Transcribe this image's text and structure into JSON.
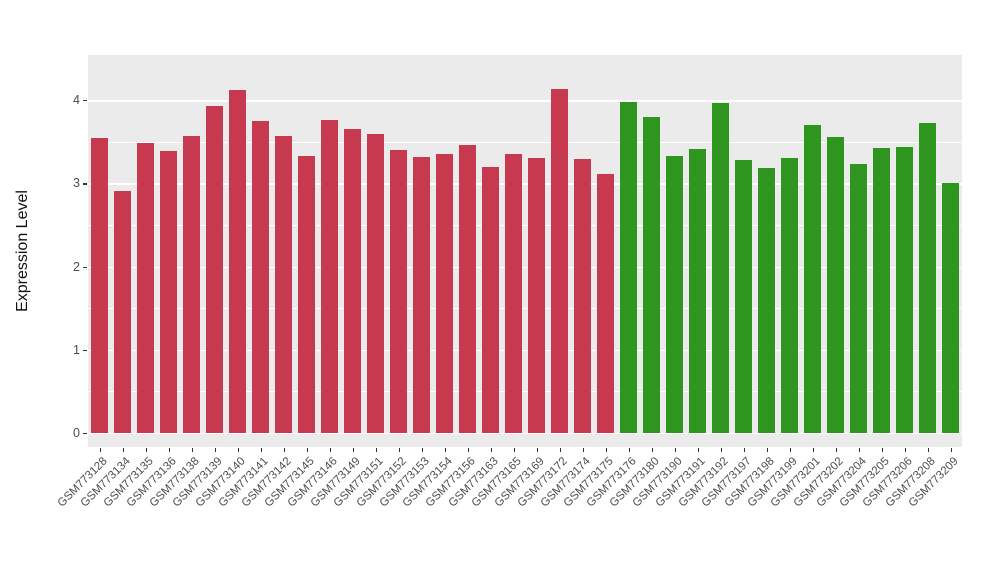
{
  "chart_data": {
    "type": "bar",
    "title": "",
    "xlabel": "",
    "ylabel": "Expression Level",
    "ylim": [
      0,
      4.35
    ],
    "yticks": [
      0,
      1,
      2,
      3,
      4
    ],
    "grid": true,
    "legend_position": "none",
    "panel_bg": "#EBEBEB",
    "grid_color": "#FFFFFF",
    "axis_text_color": "#4D4D4D",
    "categories": [
      "GSM773128",
      "GSM773134",
      "GSM773135",
      "GSM773136",
      "GSM773138",
      "GSM773139",
      "GSM773140",
      "GSM773141",
      "GSM773142",
      "GSM773145",
      "GSM773146",
      "GSM773149",
      "GSM773151",
      "GSM773152",
      "GSM773153",
      "GSM773154",
      "GSM773156",
      "GSM773163",
      "GSM773165",
      "GSM773169",
      "GSM773172",
      "GSM773174",
      "GSM773175",
      "GSM773176",
      "GSM773180",
      "GSM773190",
      "GSM773191",
      "GSM773192",
      "GSM773197",
      "GSM773198",
      "GSM773199",
      "GSM773201",
      "GSM773202",
      "GSM773204",
      "GSM773205",
      "GSM773206",
      "GSM773208",
      "GSM773209"
    ],
    "values": [
      3.54,
      2.91,
      3.49,
      3.39,
      3.57,
      3.93,
      4.12,
      3.75,
      3.57,
      3.33,
      3.76,
      3.65,
      3.59,
      3.4,
      3.32,
      3.35,
      3.46,
      3.2,
      3.35,
      3.3,
      4.13,
      3.29,
      3.11,
      3.98,
      3.8,
      3.33,
      3.41,
      3.97,
      3.28,
      3.18,
      3.31,
      3.7,
      3.56,
      3.23,
      3.43,
      3.44,
      3.72,
      3.01
    ],
    "groups": [
      "red",
      "red",
      "red",
      "red",
      "red",
      "red",
      "red",
      "red",
      "red",
      "red",
      "red",
      "red",
      "red",
      "red",
      "red",
      "red",
      "red",
      "red",
      "red",
      "red",
      "red",
      "red",
      "red",
      "green",
      "green",
      "green",
      "green",
      "green",
      "green",
      "green",
      "green",
      "green",
      "green",
      "green",
      "green",
      "green",
      "green",
      "green"
    ],
    "colors": {
      "red": "#C6394E",
      "green": "#2E951F"
    }
  }
}
